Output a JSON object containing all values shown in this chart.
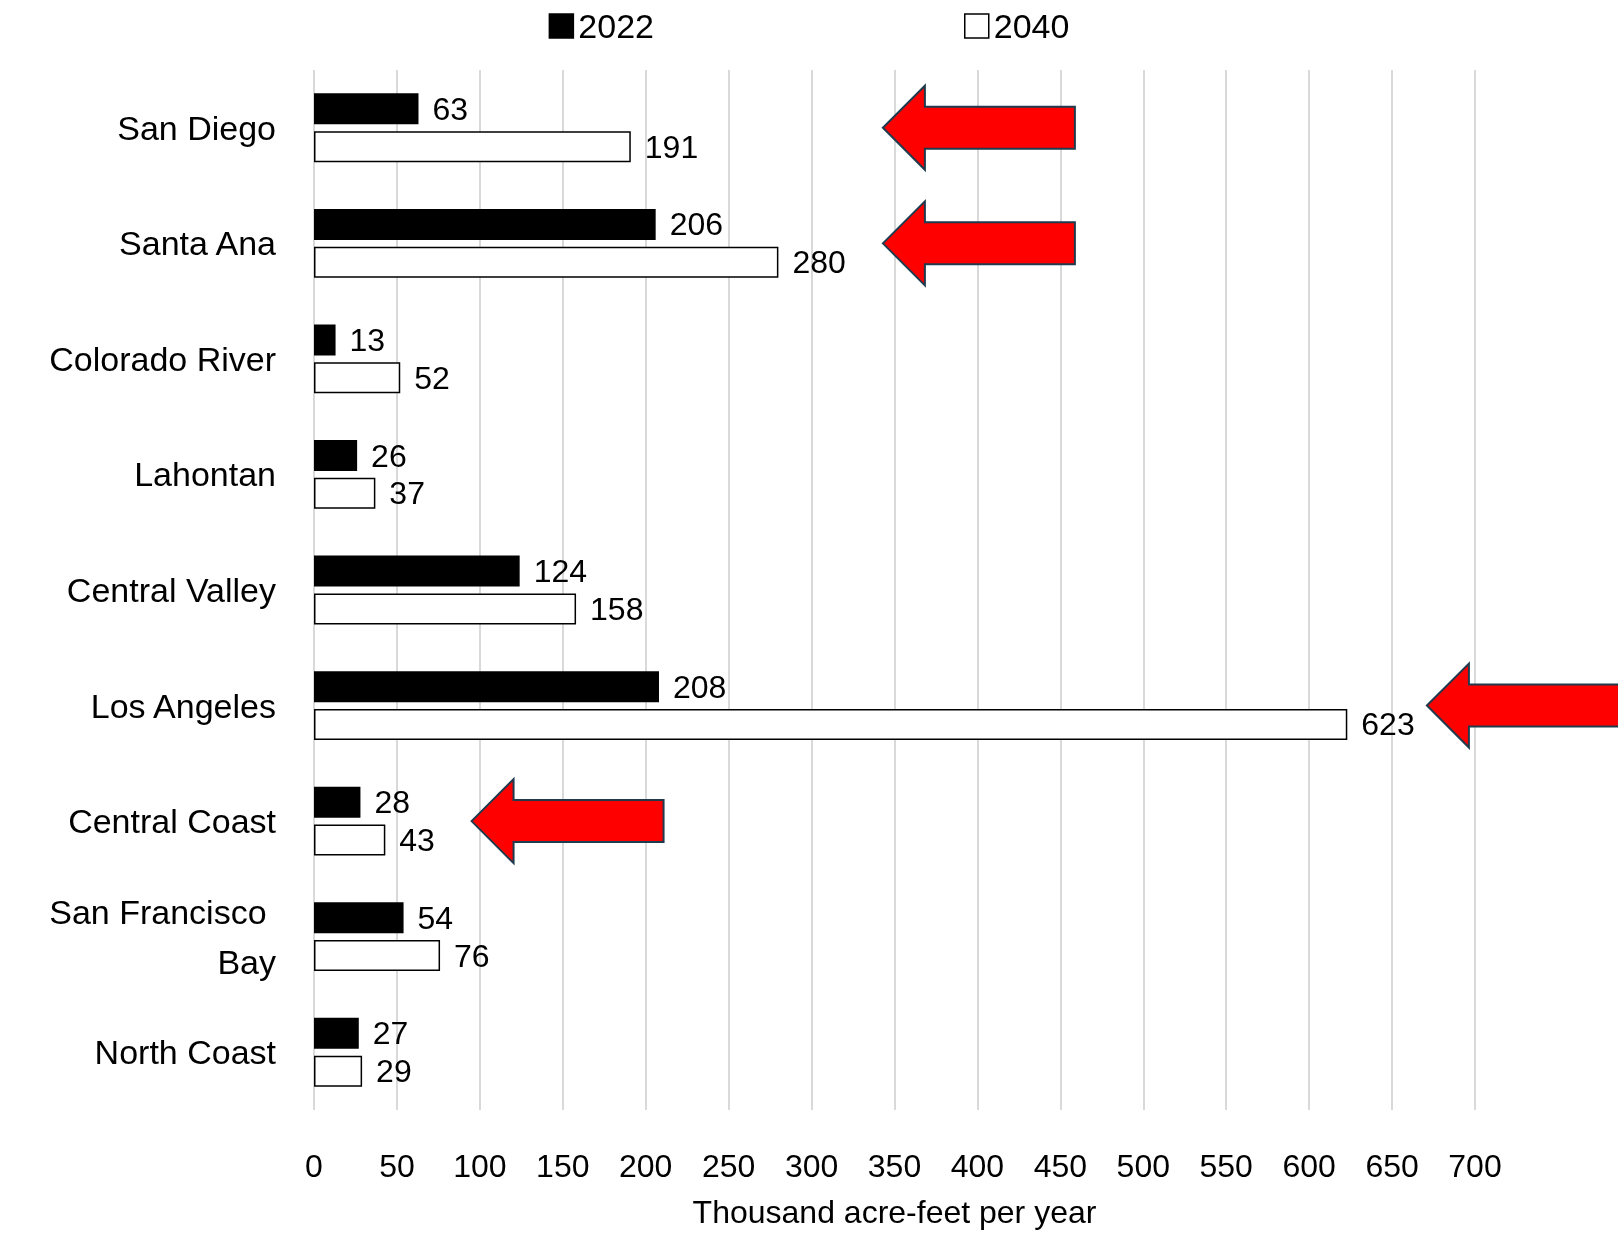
{
  "chart_data": {
    "type": "bar",
    "orientation": "horizontal",
    "xlabel": "Thousand acre-feet per year",
    "categories": [
      "San Diego",
      "Santa Ana",
      "Colorado River",
      "Lahontan",
      "Central Valley",
      "Los Angeles",
      "Central Coast",
      "San Francisco Bay",
      "North Coast"
    ],
    "series": [
      {
        "name": "2022",
        "color": "#000000",
        "values": [
          63,
          206,
          13,
          26,
          124,
          208,
          28,
          54,
          27
        ]
      },
      {
        "name": "2040",
        "color": "#ffffff",
        "values": [
          191,
          280,
          52,
          37,
          158,
          623,
          43,
          76,
          29
        ]
      }
    ],
    "xlim": [
      0,
      700
    ],
    "xticks": [
      0,
      50,
      100,
      150,
      200,
      250,
      300,
      350,
      400,
      450,
      500,
      550,
      600,
      650,
      700
    ],
    "grid": "x",
    "legend": "top",
    "data_labels": true
  }
}
